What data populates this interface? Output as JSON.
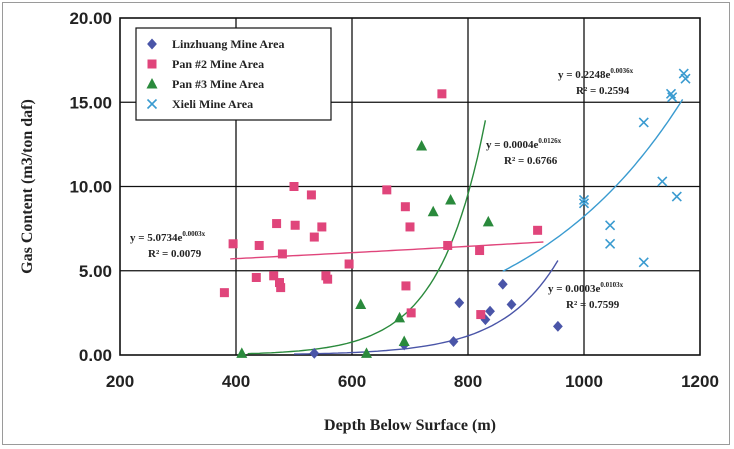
{
  "chart_data": {
    "type": "scatter",
    "xlabel": "Depth Below Surface (m)",
    "ylabel": "Gas Content (m3/ton daf)",
    "xlim": [
      200,
      1200
    ],
    "ylim": [
      0,
      20
    ],
    "x_ticks": [
      "200",
      "400",
      "600",
      "800",
      "1000",
      "1200"
    ],
    "y_ticks": [
      "0.00",
      "5.00",
      "10.00",
      "15.00",
      "20.00"
    ],
    "grid": true,
    "legend_position": "top-left",
    "series": [
      {
        "name": "Linzhuang Mine Area",
        "marker": "diamond",
        "color": "#4a55a8",
        "points": [
          [
            535,
            0.1
          ],
          [
            690,
            0.6
          ],
          [
            775,
            0.8
          ],
          [
            785,
            3.1
          ],
          [
            830,
            2.1
          ],
          [
            838,
            2.6
          ],
          [
            860,
            4.2
          ],
          [
            875,
            3.0
          ],
          [
            955,
            1.7
          ]
        ],
        "trend": {
          "a": 0.0003,
          "b": 0.0103,
          "x_range": [
            500,
            955
          ]
        },
        "equation": {
          "lead": "y = 0.0003e",
          "exp": "0.0103x",
          "r2": "R² = 0.7599"
        }
      },
      {
        "name": "Pan #2 Mine Area",
        "marker": "square",
        "color": "#e0457b",
        "points": [
          [
            380,
            3.7
          ],
          [
            395,
            6.6
          ],
          [
            435,
            4.6
          ],
          [
            440,
            6.5
          ],
          [
            465,
            4.7
          ],
          [
            470,
            7.8
          ],
          [
            475,
            4.3
          ],
          [
            477,
            4.0
          ],
          [
            480,
            6.0
          ],
          [
            500,
            10.0
          ],
          [
            502,
            7.7
          ],
          [
            530,
            9.5
          ],
          [
            535,
            7.0
          ],
          [
            548,
            7.6
          ],
          [
            555,
            4.7
          ],
          [
            558,
            4.5
          ],
          [
            595,
            5.4
          ],
          [
            660,
            9.8
          ],
          [
            692,
            8.8
          ],
          [
            693,
            4.1
          ],
          [
            700,
            7.6
          ],
          [
            702,
            2.5
          ],
          [
            755,
            15.5
          ],
          [
            765,
            6.5
          ],
          [
            820,
            6.2
          ],
          [
            822,
            2.4
          ],
          [
            920,
            7.4
          ]
        ],
        "trend": {
          "a": 5.0734,
          "b": 0.0003,
          "x_range": [
            390,
            930
          ]
        },
        "equation": {
          "lead": "y = 5.0734e",
          "exp": "0.0003x",
          "r2": "R² = 0.0079"
        }
      },
      {
        "name": "Pan #3 Mine Area",
        "marker": "triangle",
        "color": "#2a8a3c",
        "points": [
          [
            410,
            0.1
          ],
          [
            615,
            3.0
          ],
          [
            625,
            0.1
          ],
          [
            682,
            2.2
          ],
          [
            690,
            0.8
          ],
          [
            720,
            12.4
          ],
          [
            740,
            8.5
          ],
          [
            770,
            9.2
          ],
          [
            835,
            7.9
          ]
        ],
        "trend": {
          "a": 0.0004,
          "b": 0.0126,
          "x_range": [
            420,
            830
          ]
        },
        "equation": {
          "lead": "y = 0.0004e",
          "exp": "0.0126x",
          "r2": "R² = 0.6766"
        }
      },
      {
        "name": "Xieli Mine Area",
        "marker": "x",
        "color": "#3a9bd0",
        "points": [
          [
            1000,
            9.2
          ],
          [
            1000,
            9.0
          ],
          [
            1045,
            7.7
          ],
          [
            1045,
            6.6
          ],
          [
            1103,
            5.5
          ],
          [
            1103,
            13.8
          ],
          [
            1135,
            10.3
          ],
          [
            1150,
            15.5
          ],
          [
            1152,
            15.3
          ],
          [
            1160,
            9.4
          ],
          [
            1172,
            16.7
          ],
          [
            1175,
            16.4
          ]
        ],
        "trend": {
          "a": 0.2248,
          "b": 0.0036,
          "x_range": [
            860,
            1170
          ]
        },
        "equation": {
          "lead": "y = 0.2248e",
          "exp": "0.0036x",
          "r2": "R² = 0.2594"
        }
      }
    ]
  }
}
